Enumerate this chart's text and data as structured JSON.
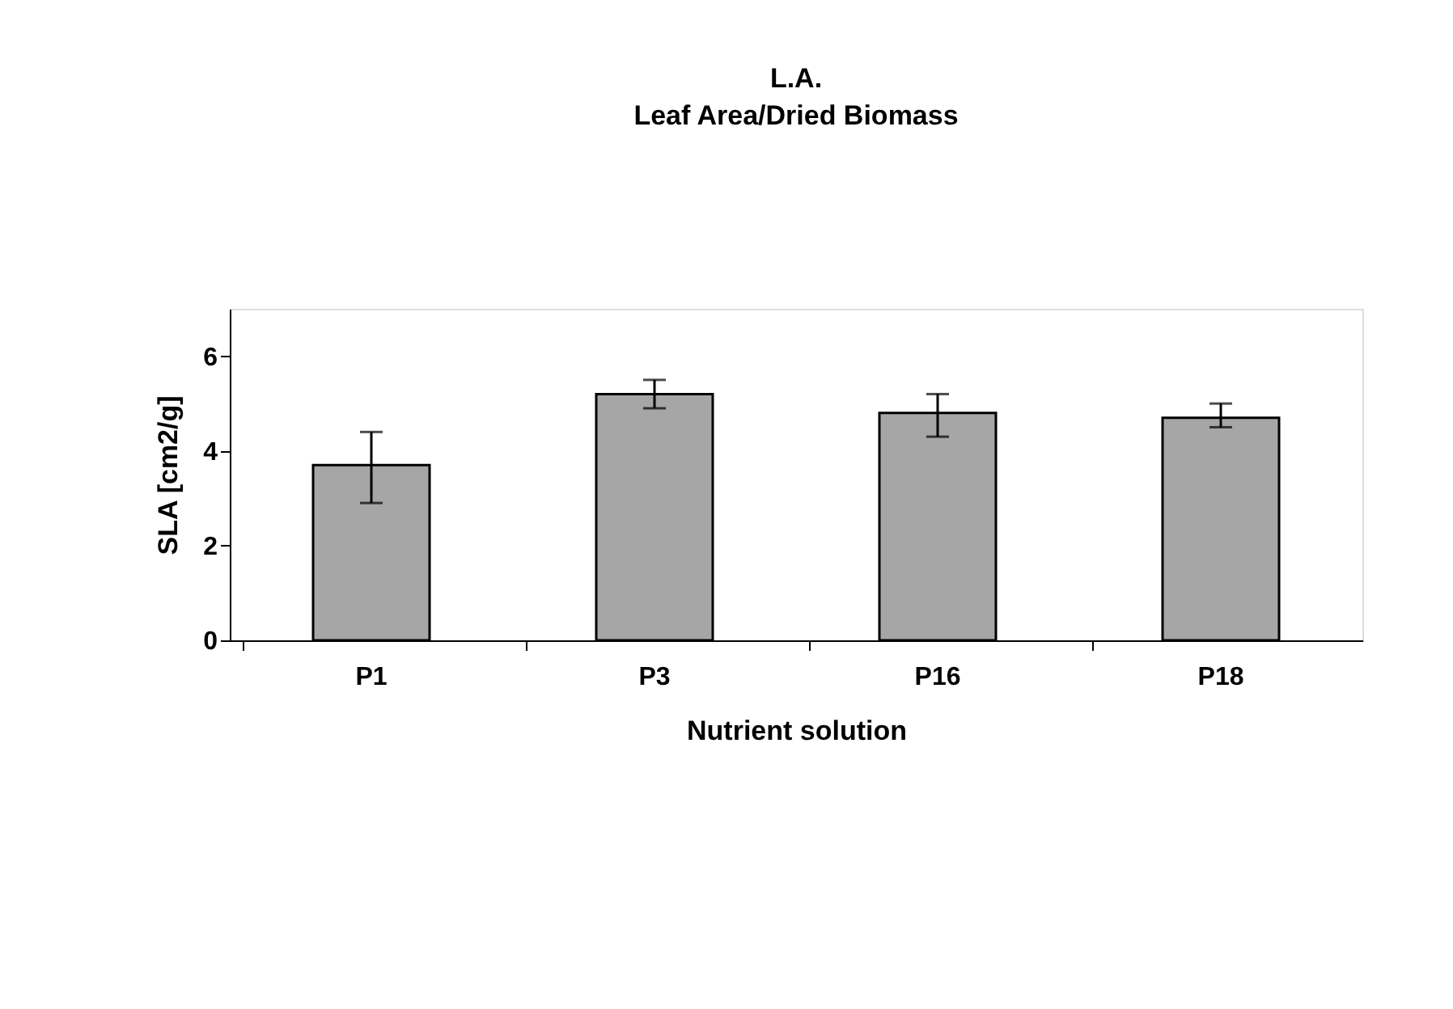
{
  "chart_data": {
    "type": "bar",
    "title": "L.A.",
    "subtitle": "Leaf Area/Dried Biomass",
    "xlabel": "Nutrient solution",
    "ylabel": "SLA [cm2/g]",
    "categories": [
      "P1",
      "P3",
      "P16",
      "P18"
    ],
    "values": [
      3.7,
      5.2,
      4.8,
      4.7
    ],
    "errors": [
      [
        2.9,
        4.4
      ],
      [
        4.9,
        5.5
      ],
      [
        4.3,
        5.2
      ],
      [
        4.5,
        5.0
      ]
    ],
    "color": "#a6a6a6",
    "ylim": [
      0,
      7
    ],
    "yticks": [
      0,
      2,
      4,
      6
    ],
    "grid": false
  }
}
